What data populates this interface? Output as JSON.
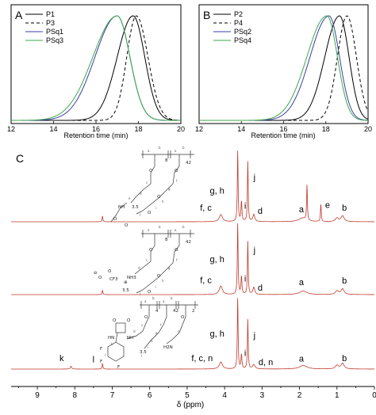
{
  "panels": {
    "A": {
      "letter": "A"
    },
    "B": {
      "letter": "B"
    },
    "C": {
      "letter": "C"
    }
  },
  "chart_data": [
    {
      "type": "line",
      "panel": "A",
      "xlabel": "Retention time (min)",
      "ylabel": "",
      "xlim": [
        12,
        20
      ],
      "xticks": [
        12,
        14,
        16,
        18,
        20
      ],
      "legend_position": "top-left",
      "series": [
        {
          "name": "P1",
          "color": "#000000",
          "dash": "solid",
          "peak": 17.75,
          "wl": 0.75,
          "wr": 0.55
        },
        {
          "name": "P3",
          "color": "#000000",
          "dash": "dashed",
          "peak": 17.9,
          "wl": 0.45,
          "wr": 0.55
        },
        {
          "name": "PSq1",
          "color": "#3b3fa5",
          "dash": "solid",
          "peak": 17.0,
          "wl": 1.05,
          "wr": 0.6
        },
        {
          "name": "PSq3",
          "color": "#3fa84a",
          "dash": "solid",
          "peak": 17.0,
          "wl": 1.15,
          "wr": 0.6
        }
      ]
    },
    {
      "type": "line",
      "panel": "B",
      "xlabel": "Retention time (min)",
      "ylabel": "",
      "xlim": [
        12,
        20
      ],
      "xticks": [
        12,
        14,
        16,
        18,
        20
      ],
      "legend_position": "top-left",
      "series": [
        {
          "name": "P2",
          "color": "#000000",
          "dash": "solid",
          "peak": 18.65,
          "wl": 0.7,
          "wr": 0.45
        },
        {
          "name": "P4",
          "color": "#000000",
          "dash": "dashed",
          "peak": 19.0,
          "wl": 0.45,
          "wr": 0.45
        },
        {
          "name": "PSq2",
          "color": "#3b3fa5",
          "dash": "solid",
          "peak": 18.15,
          "wl": 0.9,
          "wr": 0.5
        },
        {
          "name": "PSq4",
          "color": "#3fa84a",
          "dash": "solid",
          "peak": 18.05,
          "wl": 0.95,
          "wr": 0.5
        }
      ]
    },
    {
      "type": "line",
      "panel": "C",
      "xlabel": "δ (ppm)",
      "ylabel": "",
      "xlim": [
        9.7,
        0
      ],
      "xticks": [
        9,
        8,
        7,
        6,
        5,
        4,
        3,
        2,
        1,
        0
      ],
      "line_color": "#c0392b",
      "spectra": [
        {
          "peaks": [
            {
              "ppm": 7.26,
              "h": 0.08,
              "w": 0.012
            },
            {
              "ppm": 4.1,
              "h": 0.1,
              "w": 0.05
            },
            {
              "ppm": 3.65,
              "h": 1.0,
              "w": 0.012
            },
            {
              "ppm": 3.55,
              "h": 0.28,
              "w": 0.015
            },
            {
              "ppm": 3.38,
              "h": 0.85,
              "w": 0.012
            },
            {
              "ppm": 3.22,
              "h": 0.1,
              "w": 0.03
            },
            {
              "ppm": 1.92,
              "h": 0.05,
              "w": 0.12
            },
            {
              "ppm": 1.8,
              "h": 0.5,
              "w": 0.012
            },
            {
              "ppm": 1.43,
              "h": 0.25,
              "w": 0.012
            },
            {
              "ppm": 1.0,
              "h": 0.05,
              "w": 0.05
            },
            {
              "ppm": 0.85,
              "h": 0.08,
              "w": 0.05
            }
          ],
          "labels": [
            {
              "text": "g, h",
              "ppm": 4.2,
              "h": 0.36
            },
            {
              "text": "j",
              "ppm": 3.2,
              "h": 0.55
            },
            {
              "text": "i",
              "ppm": 3.45,
              "h": 0.15
            },
            {
              "text": "f, c",
              "ppm": 4.5,
              "h": 0.12
            },
            {
              "text": "d",
              "ppm": 3.05,
              "h": 0.08
            },
            {
              "text": "a",
              "ppm": 1.95,
              "h": 0.1
            },
            {
              "text": "e",
              "ppm": 1.25,
              "h": 0.16
            },
            {
              "text": "b",
              "ppm": 0.8,
              "h": 0.12
            }
          ]
        },
        {
          "peaks": [
            {
              "ppm": 7.26,
              "h": 0.06,
              "w": 0.012
            },
            {
              "ppm": 4.1,
              "h": 0.12,
              "w": 0.05
            },
            {
              "ppm": 3.65,
              "h": 1.0,
              "w": 0.012
            },
            {
              "ppm": 3.55,
              "h": 0.25,
              "w": 0.015
            },
            {
              "ppm": 3.38,
              "h": 0.75,
              "w": 0.012
            },
            {
              "ppm": 3.22,
              "h": 0.1,
              "w": 0.03
            },
            {
              "ppm": 1.9,
              "h": 0.05,
              "w": 0.12
            },
            {
              "ppm": 1.0,
              "h": 0.05,
              "w": 0.05
            },
            {
              "ppm": 0.85,
              "h": 0.08,
              "w": 0.05
            }
          ],
          "labels": [
            {
              "text": "g, h",
              "ppm": 4.2,
              "h": 0.42
            },
            {
              "text": "j",
              "ppm": 3.2,
              "h": 0.55
            },
            {
              "text": "i",
              "ppm": 3.45,
              "h": 0.15
            },
            {
              "text": "f, c",
              "ppm": 4.5,
              "h": 0.13
            },
            {
              "text": "d",
              "ppm": 3.05,
              "h": 0.02
            },
            {
              "text": "a",
              "ppm": 1.95,
              "h": 0.1
            },
            {
              "text": "b",
              "ppm": 0.8,
              "h": 0.12
            }
          ]
        },
        {
          "peaks": [
            {
              "ppm": 8.1,
              "h": 0.04,
              "w": 0.02
            },
            {
              "ppm": 7.26,
              "h": 0.08,
              "w": 0.012
            },
            {
              "ppm": 4.1,
              "h": 0.1,
              "w": 0.05
            },
            {
              "ppm": 3.65,
              "h": 1.0,
              "w": 0.012
            },
            {
              "ppm": 3.55,
              "h": 0.2,
              "w": 0.015
            },
            {
              "ppm": 3.38,
              "h": 0.7,
              "w": 0.012
            },
            {
              "ppm": 3.22,
              "h": 0.06,
              "w": 0.04
            },
            {
              "ppm": 1.9,
              "h": 0.05,
              "w": 0.12
            },
            {
              "ppm": 1.0,
              "h": 0.05,
              "w": 0.05
            },
            {
              "ppm": 0.85,
              "h": 0.08,
              "w": 0.05
            }
          ],
          "labels": [
            {
              "text": "k",
              "ppm": 8.35,
              "h": 0.08
            },
            {
              "text": "l",
              "ppm": 7.5,
              "h": 0.06
            },
            {
              "text": "g, h",
              "ppm": 4.2,
              "h": 0.42
            },
            {
              "text": "j",
              "ppm": 3.2,
              "h": 0.4
            },
            {
              "text": "i",
              "ppm": 3.45,
              "h": 0.15
            },
            {
              "text": "f, c, n",
              "ppm": 4.6,
              "h": 0.08
            },
            {
              "text": "d, n",
              "ppm": 2.9,
              "h": 0.02
            },
            {
              "text": "a",
              "ppm": 1.95,
              "h": 0.07
            },
            {
              "text": "b",
              "ppm": 0.8,
              "h": 0.08
            }
          ]
        }
      ]
    }
  ],
  "structures": {
    "s1": {
      "repeat_a": "8",
      "repeat_b": "42",
      "repeat_ether": "3.5",
      "atom_labels": [
        "NH",
        "O",
        "O",
        "O",
        "O",
        "O",
        "O"
      ],
      "carbon_letters": [
        "a",
        "b",
        "a",
        "b",
        "c",
        "e",
        "d",
        "f",
        "g",
        "h",
        "i",
        "j"
      ]
    },
    "s2": {
      "repeat_a": "8",
      "repeat_b": "42",
      "repeat_ether": "3.5",
      "atom_labels": [
        "NH3",
        "O",
        "O",
        "O",
        "O",
        "O",
        "O"
      ],
      "counterion": [
        "O",
        "CF3",
        "⊖",
        "⊕",
        "O"
      ],
      "carbon_letters": [
        "a",
        "b",
        "a",
        "b",
        "c",
        "d",
        "f",
        "g",
        "h",
        "i",
        "j"
      ]
    },
    "s3": {
      "repeat_a": "4",
      "repeat_b": "42",
      "repeat_c": "2",
      "repeat_ether": "3.5",
      "atom_labels": [
        "O",
        "O",
        "NH",
        "HN",
        "F",
        "F",
        "F",
        "H2N",
        "O",
        "O"
      ],
      "carbon_letters": [
        "a",
        "b",
        "a",
        "b",
        "c",
        "d",
        "n",
        "f",
        "g",
        "h",
        "i",
        "j",
        "k",
        "l"
      ]
    }
  }
}
